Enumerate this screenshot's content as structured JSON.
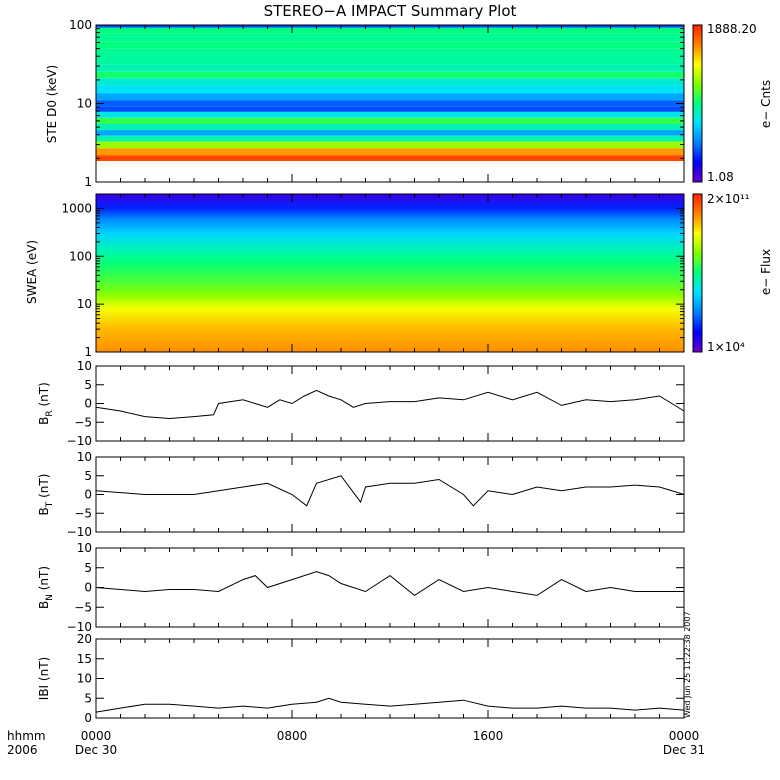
{
  "title": "STEREO−A IMPACT Summary Plot",
  "timestamp": "Wed Jun 25 11:22:38 2007",
  "x_axis": {
    "row1_label": "hhmm",
    "row2_label": "2006",
    "ticks": [
      {
        "time": "0000",
        "date": "Dec 30",
        "hour": 0
      },
      {
        "time": "0800",
        "date": "",
        "hour": 8
      },
      {
        "time": "1600",
        "date": "",
        "hour": 16
      },
      {
        "time": "0000",
        "date": "Dec 31",
        "hour": 24
      }
    ]
  },
  "chart_data": [
    {
      "type": "heatmap",
      "ylabel": "STE D0 (keV)",
      "yscale": "log",
      "ylim": [
        1,
        100
      ],
      "yticks": [
        "1",
        "10",
        "100"
      ],
      "colorbar": {
        "label": "e− Cnts",
        "max": "1888.20",
        "min": "1.08"
      },
      "colormap": [
        "#6a00c8",
        "#0000ff",
        "#0080ff",
        "#00e0ff",
        "#00ff80",
        "#80ff00",
        "#ffff00",
        "#ff8000",
        "#ff2000"
      ],
      "energy_bands": [
        {
          "y": 2.0,
          "level": 0.95
        },
        {
          "y": 2.4,
          "level": 0.85
        },
        {
          "y": 3.0,
          "level": 0.65
        },
        {
          "y": 3.6,
          "level": 0.45
        },
        {
          "y": 4.2,
          "level": 0.3
        },
        {
          "y": 5.0,
          "level": 0.45
        },
        {
          "y": 6.0,
          "level": 0.55
        },
        {
          "y": 7.2,
          "level": 0.4
        },
        {
          "y": 8.5,
          "level": 0.2
        },
        {
          "y": 10.0,
          "level": 0.22
        },
        {
          "y": 12.0,
          "level": 0.3
        },
        {
          "y": 15.0,
          "level": 0.38
        },
        {
          "y": 19.0,
          "level": 0.42
        },
        {
          "y": 23.0,
          "level": 0.52
        },
        {
          "y": 28.0,
          "level": 0.45
        },
        {
          "y": 35.0,
          "level": 0.47
        },
        {
          "y": 45.0,
          "level": 0.48
        },
        {
          "y": 55.0,
          "level": 0.5
        },
        {
          "y": 70.0,
          "level": 0.48
        },
        {
          "y": 85.0,
          "level": 0.5
        },
        {
          "y": 100.0,
          "level": 0.2
        }
      ]
    },
    {
      "type": "heatmap",
      "ylabel": "SWEA (eV)",
      "yscale": "log",
      "ylim": [
        1,
        2000
      ],
      "yticks": [
        "1",
        "10",
        "100",
        "1000"
      ],
      "colorbar": {
        "label": "e− Flux",
        "max": "2×10¹¹",
        "min": "1×10⁴"
      },
      "colormap": [
        "#6a00c8",
        "#0000ff",
        "#0080ff",
        "#00e0ff",
        "#00ff80",
        "#80ff00",
        "#ffff00",
        "#ff8000",
        "#ff2000"
      ],
      "energy_levels": [
        {
          "y": 1.0,
          "level": 0.86
        },
        {
          "y": 3.0,
          "level": 0.82
        },
        {
          "y": 8.0,
          "level": 0.74
        },
        {
          "y": 15.0,
          "level": 0.64
        },
        {
          "y": 30.0,
          "level": 0.57
        },
        {
          "y": 80.0,
          "level": 0.5
        },
        {
          "y": 150.0,
          "level": 0.44
        },
        {
          "y": 300.0,
          "level": 0.36
        },
        {
          "y": 600.0,
          "level": 0.26
        },
        {
          "y": 1000.0,
          "level": 0.16
        },
        {
          "y": 2000.0,
          "level": 0.06
        }
      ]
    },
    {
      "type": "line",
      "ylabel": "BR (nT)",
      "ylabel_main": "B",
      "ylabel_sub": "R",
      "ylabel_unit": "(nT)",
      "ylim": [
        -10,
        10
      ],
      "yticks": [
        "10",
        "5",
        "0",
        "−5",
        "−10"
      ],
      "x": [
        0,
        1,
        2,
        3,
        4,
        4.8,
        5,
        5.5,
        6,
        7,
        7.5,
        8,
        8.5,
        9,
        9.5,
        10,
        10.5,
        11,
        12,
        13,
        14,
        15,
        16,
        17,
        18,
        19,
        20,
        21,
        22,
        23,
        23.5,
        24
      ],
      "values": [
        -1,
        -2,
        -3.5,
        -4,
        -3.5,
        -3,
        0,
        0.5,
        1,
        -1,
        1,
        0,
        2,
        3.5,
        2,
        1,
        -1,
        0,
        0.5,
        0.5,
        1.5,
        1,
        3,
        1,
        3,
        -0.5,
        1,
        0.5,
        1,
        2,
        0,
        -2
      ]
    },
    {
      "type": "line",
      "ylabel": "BT (nT)",
      "ylabel_main": "B",
      "ylabel_sub": "T",
      "ylabel_unit": "(nT)",
      "ylim": [
        -10,
        10
      ],
      "yticks": [
        "10",
        "5",
        "0",
        "−5",
        "−10"
      ],
      "x": [
        0,
        1,
        2,
        3,
        4,
        5,
        6,
        7,
        8,
        8.6,
        9,
        10,
        10.8,
        11,
        12,
        13,
        14,
        15,
        15.4,
        16,
        17,
        18,
        19,
        20,
        21,
        22,
        23,
        24
      ],
      "values": [
        1,
        0.5,
        0,
        0,
        0,
        1,
        2,
        3,
        0,
        -3,
        3,
        5,
        -2,
        2,
        3,
        3,
        4,
        0,
        -3,
        1,
        0,
        2,
        1,
        2,
        2,
        2.5,
        2,
        0
      ]
    },
    {
      "type": "line",
      "ylabel": "BN (nT)",
      "ylabel_main": "B",
      "ylabel_sub": "N",
      "ylabel_unit": "(nT)",
      "ylim": [
        -10,
        10
      ],
      "yticks": [
        "10",
        "5",
        "0",
        "−5",
        "−10"
      ],
      "x": [
        0,
        1,
        2,
        3,
        4,
        5,
        6,
        6.5,
        7,
        8,
        9,
        9.5,
        10,
        11,
        12,
        13,
        14,
        15,
        16,
        17,
        18,
        19,
        20,
        21,
        22,
        23,
        24
      ],
      "values": [
        0,
        -0.5,
        -1,
        -0.5,
        -0.5,
        -1,
        2,
        3,
        0,
        2,
        4,
        3,
        1,
        -1,
        3,
        -2,
        2,
        -1,
        0,
        -1,
        -2,
        2,
        -1,
        0,
        -1,
        -1,
        -1
      ]
    },
    {
      "type": "line",
      "ylabel": "|B| (nT)",
      "ylabel_main": "IBI",
      "ylabel_sub": "",
      "ylabel_unit": "(nT)",
      "ylim": [
        0,
        20
      ],
      "yticks": [
        "20",
        "15",
        "10",
        "5",
        "0"
      ],
      "x": [
        0,
        1,
        2,
        3,
        4,
        5,
        6,
        7,
        8,
        9,
        9.5,
        10,
        11,
        12,
        13,
        14,
        15,
        16,
        17,
        18,
        19,
        20,
        21,
        22,
        23,
        24
      ],
      "values": [
        1.5,
        2.5,
        3.5,
        3.5,
        3,
        2.5,
        3,
        2.5,
        3.5,
        4,
        5,
        4,
        3.5,
        3,
        3.5,
        4,
        4.5,
        3,
        2.5,
        2.5,
        3,
        2.5,
        2.5,
        2,
        2.5,
        2
      ]
    }
  ]
}
